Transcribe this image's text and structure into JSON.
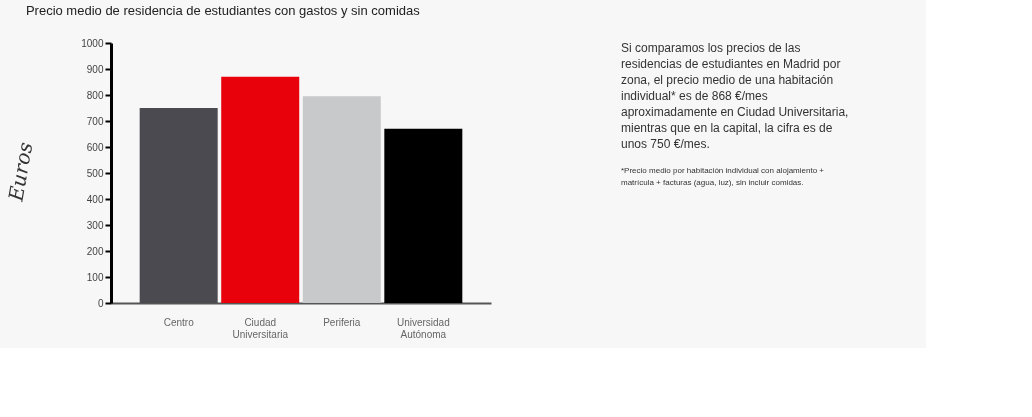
{
  "chart_data": {
    "type": "bar",
    "title": "Precio medio de residencia de estudiantes con gastos y sin comidas",
    "ylabel": "Euros",
    "categories": [
      "Centro",
      "Ciudad Universitaria",
      "Periferia",
      "Universidad Autónoma"
    ],
    "values": [
      750,
      870,
      795,
      670
    ],
    "colors": [
      "#4a4a50",
      "#e8000b",
      "#c8c9cb",
      "#000000"
    ],
    "ylim": [
      0,
      1000
    ],
    "yticks": [
      0,
      100,
      200,
      300,
      400,
      500,
      600,
      700,
      800,
      900,
      1000
    ],
    "grid": false,
    "annotations": [
      "Si comparamos los precios de las residencias de estudiantes en Madrid por zona, el precio medio de una habitación individual* es de 868 €/mes aproximadamente en Ciudad Universitaria, mientras que en la capital, la cifra es de unos 750 €/mes.",
      "*Precio medio por habitación individual con alojamiento + matrícula + facturas (agua, luz), sin incluir comidas."
    ]
  }
}
